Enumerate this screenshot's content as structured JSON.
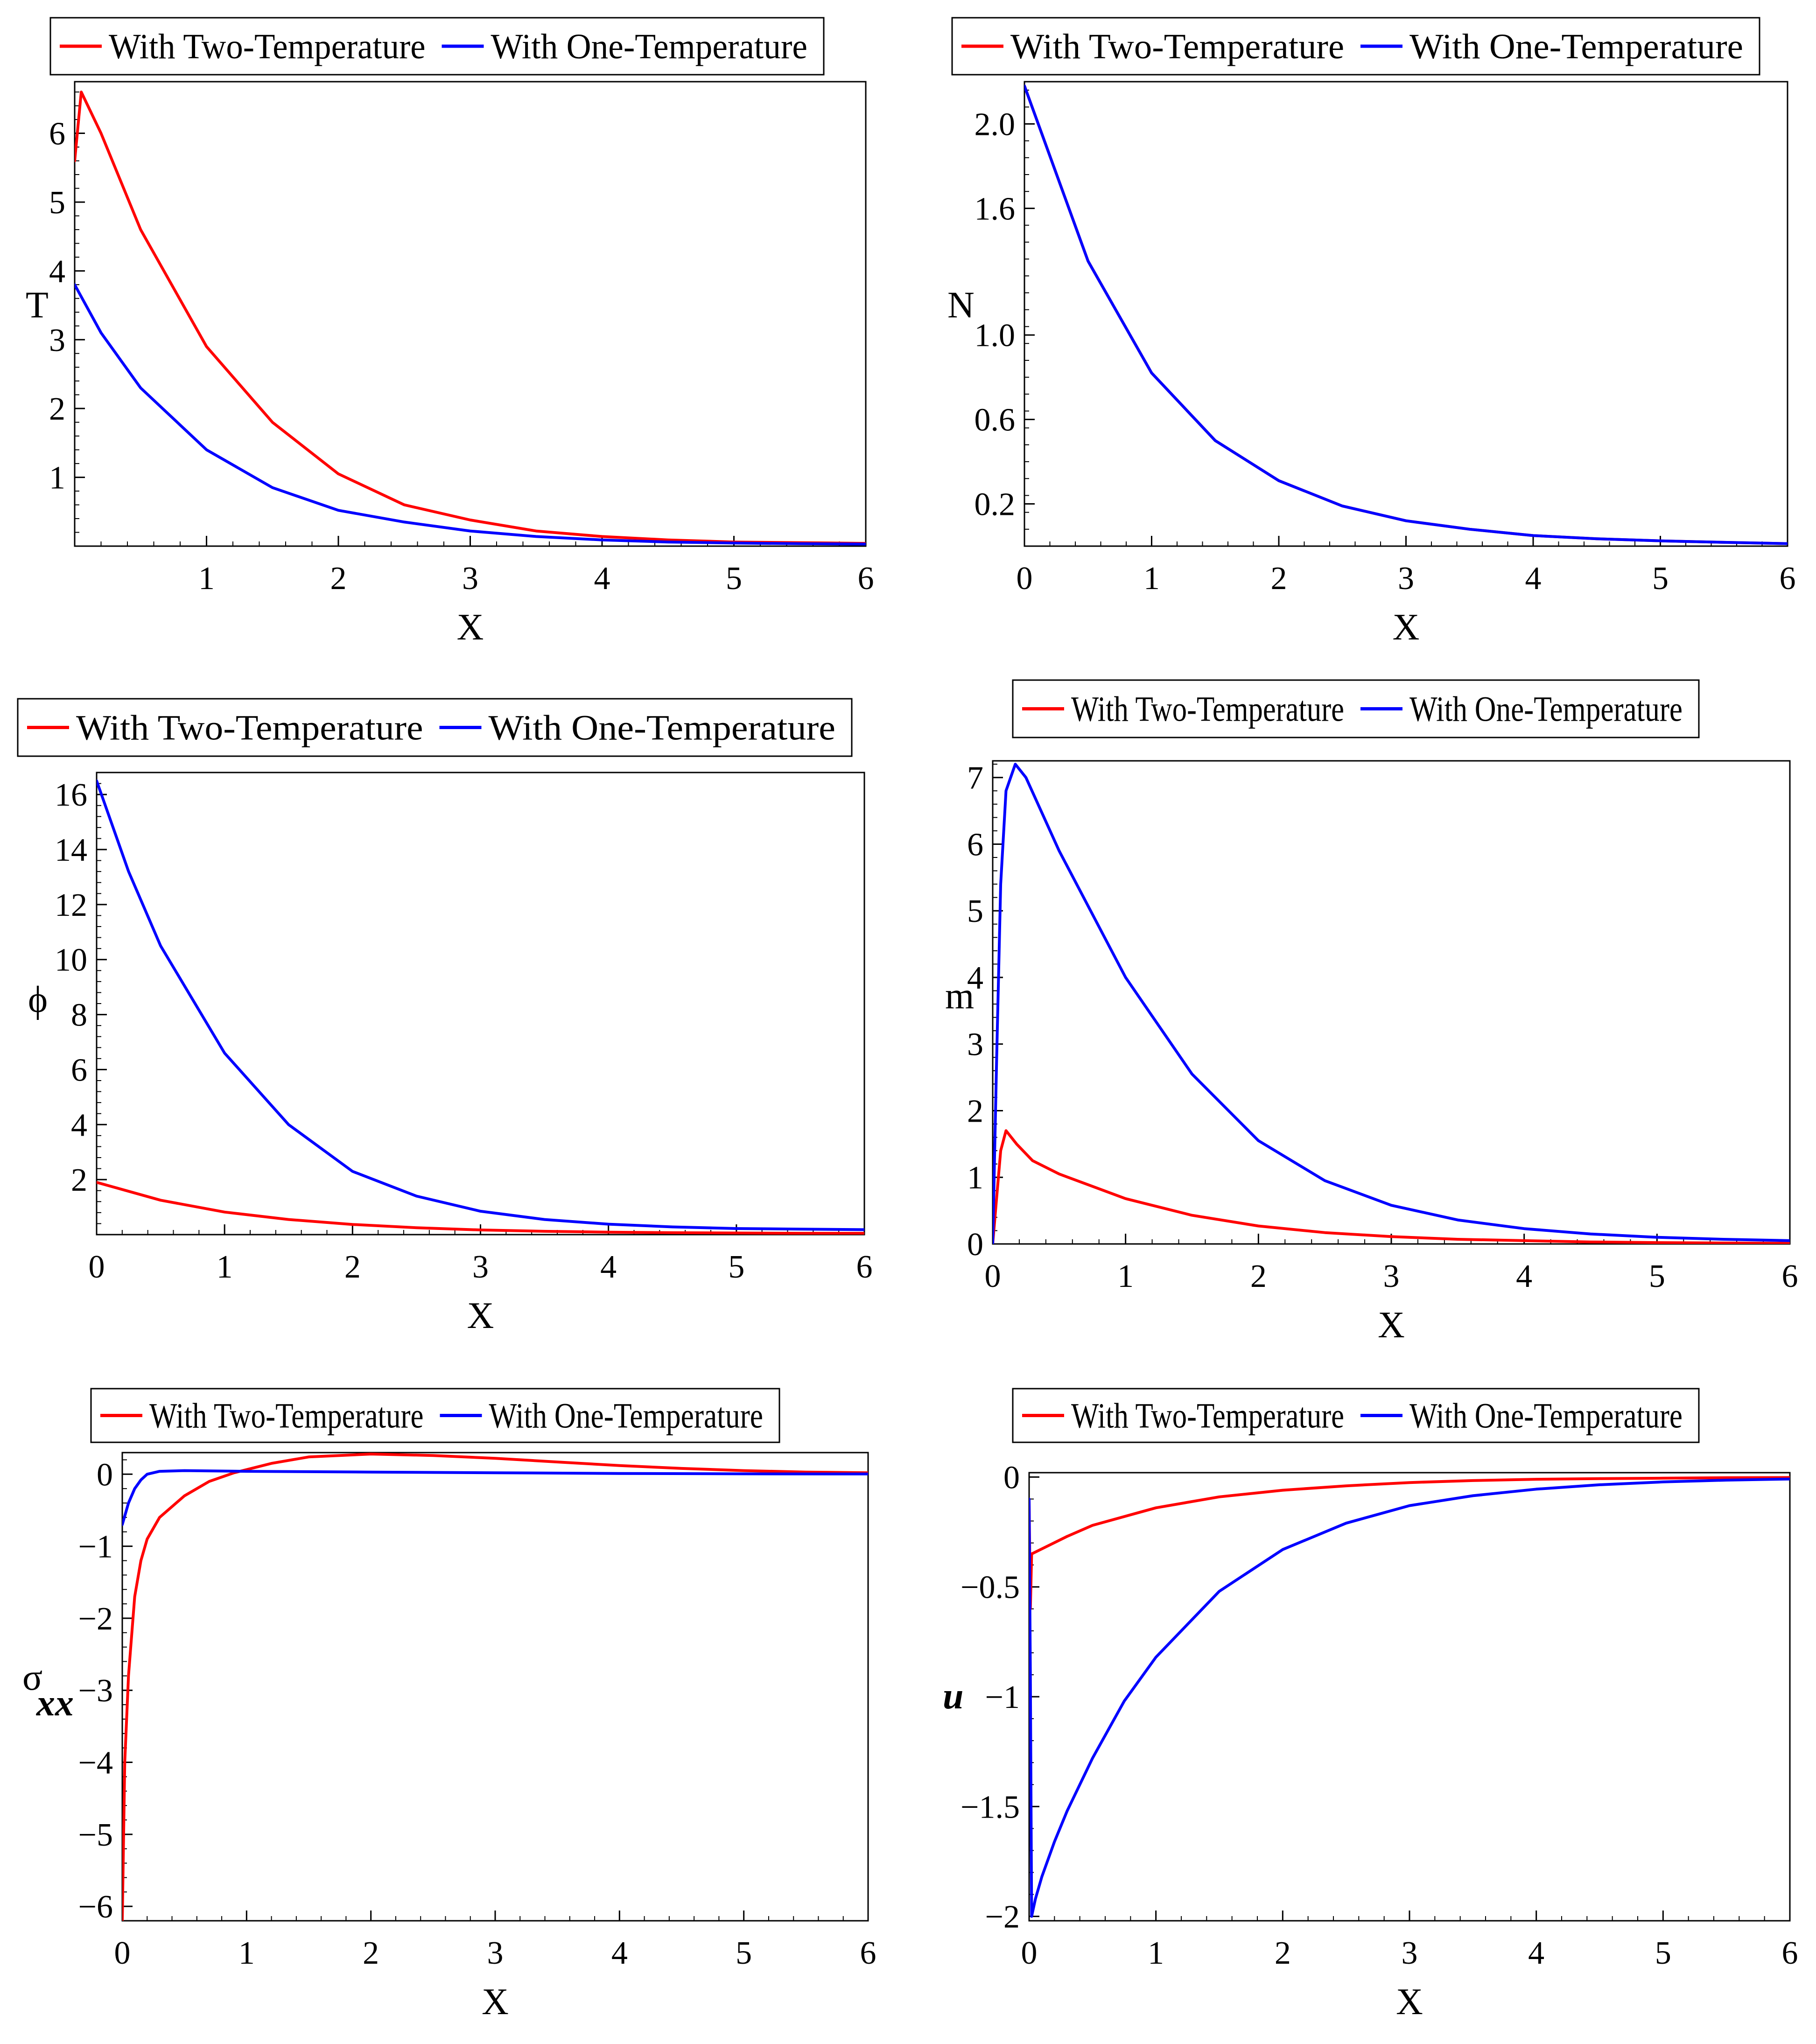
{
  "colors": {
    "two_temperature": "#ff0000",
    "one_temperature": "#0000ff",
    "axes": "#000000"
  },
  "chart_data": [
    {
      "id": "T",
      "type": "line",
      "xlabel": "X",
      "ylabel": "T",
      "xlim": [
        0,
        6
      ],
      "ylim": [
        0,
        6.75
      ],
      "xticks": [
        1,
        2,
        3,
        4,
        5,
        6
      ],
      "yticks": [
        1,
        2,
        3,
        4,
        5,
        6
      ],
      "legend": [
        "With Two-Temperature",
        "With One-Temperature"
      ],
      "series": [
        {
          "name": "With Two-Temperature",
          "color": "#ff0000",
          "x": [
            0,
            0.05,
            0.2,
            0.5,
            1,
            1.5,
            2,
            2.5,
            3,
            3.5,
            4,
            4.5,
            5,
            5.5,
            6
          ],
          "y": [
            5.6,
            6.6,
            6.0,
            4.6,
            2.9,
            1.8,
            1.05,
            0.6,
            0.38,
            0.22,
            0.14,
            0.09,
            0.06,
            0.05,
            0.04
          ]
        },
        {
          "name": "With One-Temperature",
          "color": "#0000ff",
          "x": [
            0,
            0.2,
            0.5,
            1,
            1.5,
            2,
            2.5,
            3,
            3.5,
            4,
            4.5,
            5,
            5.5,
            6
          ],
          "y": [
            3.8,
            3.1,
            2.3,
            1.4,
            0.85,
            0.52,
            0.35,
            0.22,
            0.14,
            0.09,
            0.06,
            0.045,
            0.035,
            0.03
          ]
        }
      ]
    },
    {
      "id": "N",
      "type": "line",
      "xlabel": "X",
      "ylabel": "N",
      "xlim": [
        0,
        6
      ],
      "ylim": [
        0,
        2.2
      ],
      "xticks": [
        0,
        1,
        2,
        3,
        4,
        5,
        6
      ],
      "yticks": [
        0.2,
        0.6,
        1.0,
        1.6,
        2.0
      ],
      "ytick_labels": [
        "0.2",
        "0.6",
        "1.0",
        "1.6",
        "2.0"
      ],
      "legend": [
        "With Two-Temperature",
        "With One-Temperature"
      ],
      "series": [
        {
          "name": "With Two-Temperature",
          "color": "#ff0000",
          "x": [
            0,
            0.5,
            1,
            1.5,
            2,
            2.5,
            3,
            3.5,
            4,
            4.5,
            5,
            5.5,
            6
          ],
          "y": [
            2.18,
            1.35,
            0.82,
            0.5,
            0.31,
            0.19,
            0.12,
            0.08,
            0.05,
            0.035,
            0.025,
            0.018,
            0.012
          ]
        },
        {
          "name": "With One-Temperature",
          "color": "#0000ff",
          "x": [
            0,
            0.5,
            1,
            1.5,
            2,
            2.5,
            3,
            3.5,
            4,
            4.5,
            5,
            5.5,
            6
          ],
          "y": [
            2.18,
            1.35,
            0.82,
            0.5,
            0.31,
            0.19,
            0.12,
            0.08,
            0.05,
            0.035,
            0.025,
            0.018,
            0.012
          ]
        }
      ]
    },
    {
      "id": "phi",
      "type": "line",
      "xlabel": "X",
      "ylabel": "ϕ",
      "xlim": [
        0,
        6
      ],
      "ylim": [
        0,
        16.8
      ],
      "xticks": [
        0,
        1,
        2,
        3,
        4,
        5,
        6
      ],
      "yticks": [
        2,
        4,
        6,
        8,
        10,
        12,
        14,
        16
      ],
      "legend": [
        "With Two-Temperature",
        "With One-Temperature"
      ],
      "series": [
        {
          "name": "With Two-Temperature",
          "color": "#ff0000",
          "x": [
            0,
            0.5,
            1,
            1.5,
            2,
            2.5,
            3,
            3.5,
            4,
            4.5,
            5,
            5.5,
            6
          ],
          "y": [
            1.9,
            1.25,
            0.82,
            0.55,
            0.37,
            0.25,
            0.17,
            0.12,
            0.09,
            0.07,
            0.06,
            0.05,
            0.05
          ]
        },
        {
          "name": "With One-Temperature",
          "color": "#0000ff",
          "x": [
            0,
            0.25,
            0.5,
            1,
            1.5,
            2,
            2.5,
            3,
            3.5,
            4,
            4.5,
            5,
            5.5,
            6
          ],
          "y": [
            16.5,
            13.2,
            10.5,
            6.6,
            4.0,
            2.3,
            1.4,
            0.85,
            0.55,
            0.38,
            0.28,
            0.22,
            0.2,
            0.18
          ]
        }
      ]
    },
    {
      "id": "m",
      "type": "line",
      "xlabel": "X",
      "ylabel": "m",
      "xlim": [
        0,
        6
      ],
      "ylim": [
        0,
        7.25
      ],
      "xticks": [
        0,
        1,
        2,
        3,
        4,
        5,
        6
      ],
      "yticks": [
        0,
        1,
        2,
        3,
        4,
        5,
        6,
        7
      ],
      "legend": [
        "With Two-Temperature",
        "With One-Temperature"
      ],
      "series": [
        {
          "name": "With Two-Temperature",
          "color": "#ff0000",
          "x": [
            0,
            0.03,
            0.06,
            0.1,
            0.18,
            0.3,
            0.5,
            1,
            1.5,
            2,
            2.5,
            3,
            3.5,
            4,
            4.5,
            5,
            5.5,
            6
          ],
          "y": [
            0,
            0.7,
            1.4,
            1.7,
            1.5,
            1.25,
            1.05,
            0.68,
            0.43,
            0.27,
            0.17,
            0.11,
            0.07,
            0.05,
            0.03,
            0.02,
            0.015,
            0.01
          ]
        },
        {
          "name": "With One-Temperature",
          "color": "#0000ff",
          "x": [
            0,
            0.03,
            0.06,
            0.1,
            0.17,
            0.25,
            0.5,
            1,
            1.5,
            2,
            2.5,
            3,
            3.5,
            4,
            4.5,
            5,
            5.5,
            6
          ],
          "y": [
            0,
            2.8,
            5.4,
            6.8,
            7.2,
            7.0,
            5.9,
            4.0,
            2.55,
            1.55,
            0.95,
            0.58,
            0.36,
            0.23,
            0.15,
            0.1,
            0.07,
            0.05
          ]
        }
      ]
    },
    {
      "id": "sigma_xx",
      "type": "line",
      "xlabel": "X",
      "ylabel": "σ",
      "ylabel_subscript": "xx",
      "xlim": [
        0,
        6
      ],
      "ylim": [
        -6.2,
        0.3
      ],
      "xticks": [
        0,
        1,
        2,
        3,
        4,
        5,
        6
      ],
      "yticks": [
        -6,
        -5,
        -4,
        -3,
        -2,
        -1,
        0
      ],
      "legend": [
        "With Two-Temperature",
        "With One-Temperature"
      ],
      "series": [
        {
          "name": "With Two-Temperature",
          "color": "#ff0000",
          "x": [
            0,
            0.02,
            0.05,
            0.1,
            0.15,
            0.2,
            0.3,
            0.5,
            0.7,
            0.9,
            1.2,
            1.5,
            2,
            2.5,
            3,
            3.5,
            4,
            4.5,
            5,
            5.5,
            6
          ],
          "y": [
            -6.2,
            -4.0,
            -2.8,
            -1.7,
            -1.2,
            -0.9,
            -0.6,
            -0.3,
            -0.1,
            0.02,
            0.15,
            0.24,
            0.28,
            0.26,
            0.22,
            0.17,
            0.12,
            0.08,
            0.05,
            0.03,
            0.02
          ]
        },
        {
          "name": "With One-Temperature",
          "color": "#0000ff",
          "x": [
            0,
            0.05,
            0.1,
            0.15,
            0.2,
            0.3,
            0.5,
            1,
            2,
            3,
            4,
            5,
            6
          ],
          "y": [
            -0.7,
            -0.4,
            -0.2,
            -0.08,
            0.0,
            0.04,
            0.05,
            0.04,
            0.03,
            0.02,
            0.01,
            0.005,
            0.003
          ]
        }
      ]
    },
    {
      "id": "u",
      "type": "line",
      "xlabel": "X",
      "ylabel": "u",
      "xlim": [
        0,
        6
      ],
      "ylim": [
        -2.02,
        0.02
      ],
      "xticks": [
        0,
        1,
        2,
        3,
        4,
        5,
        6
      ],
      "yticks": [
        -2,
        -1.5,
        -1,
        -0.5,
        0
      ],
      "legend": [
        "With Two-Temperature",
        "With One-Temperature"
      ],
      "series": [
        {
          "name": "With Two-Temperature",
          "color": "#ff0000",
          "x": [
            0,
            0.01,
            0.02,
            0.3,
            0.5,
            1,
            1.5,
            2,
            2.5,
            3,
            3.5,
            4,
            4.5,
            5,
            5.5,
            6
          ],
          "y": [
            -0.1,
            -0.6,
            -0.35,
            -0.27,
            -0.22,
            -0.14,
            -0.09,
            -0.06,
            -0.04,
            -0.025,
            -0.016,
            -0.01,
            -0.007,
            -0.005,
            -0.003,
            -0.002
          ]
        },
        {
          "name": "With One-Temperature",
          "color": "#0000ff",
          "x": [
            0,
            0.01,
            0.02,
            0.05,
            0.1,
            0.2,
            0.3,
            0.5,
            0.75,
            1,
            1.5,
            2,
            2.5,
            3,
            3.5,
            4,
            4.5,
            5,
            5.5,
            6
          ],
          "y": [
            -0.1,
            -0.9,
            -2.0,
            -1.92,
            -1.82,
            -1.66,
            -1.52,
            -1.28,
            -1.02,
            -0.82,
            -0.52,
            -0.33,
            -0.21,
            -0.13,
            -0.085,
            -0.055,
            -0.035,
            -0.022,
            -0.014,
            -0.009
          ]
        }
      ]
    }
  ]
}
